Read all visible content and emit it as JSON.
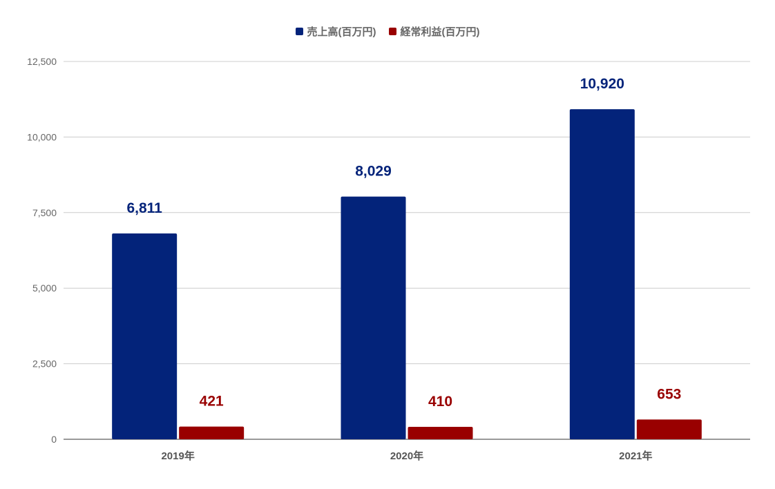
{
  "chart_data": {
    "type": "bar",
    "categories": [
      "2019年",
      "2020年",
      "2021年"
    ],
    "series": [
      {
        "name": "売上高(百万円)",
        "values": [
          6811,
          8029,
          10920
        ],
        "labels": [
          "6,811",
          "8,029",
          "10,920"
        ],
        "color": "#03237a"
      },
      {
        "name": "経常利益(百万円)",
        "values": [
          421,
          410,
          653
        ],
        "labels": [
          "421",
          "410",
          "653"
        ],
        "color": "#990000"
      }
    ],
    "yticks": [
      "0",
      "2,500",
      "5,000",
      "7,500",
      "10,000",
      "12,500"
    ],
    "ytick_values": [
      0,
      2500,
      5000,
      7500,
      10000,
      12500
    ],
    "ylim": [
      0,
      12500
    ],
    "grid": true,
    "legend_position": "top"
  }
}
